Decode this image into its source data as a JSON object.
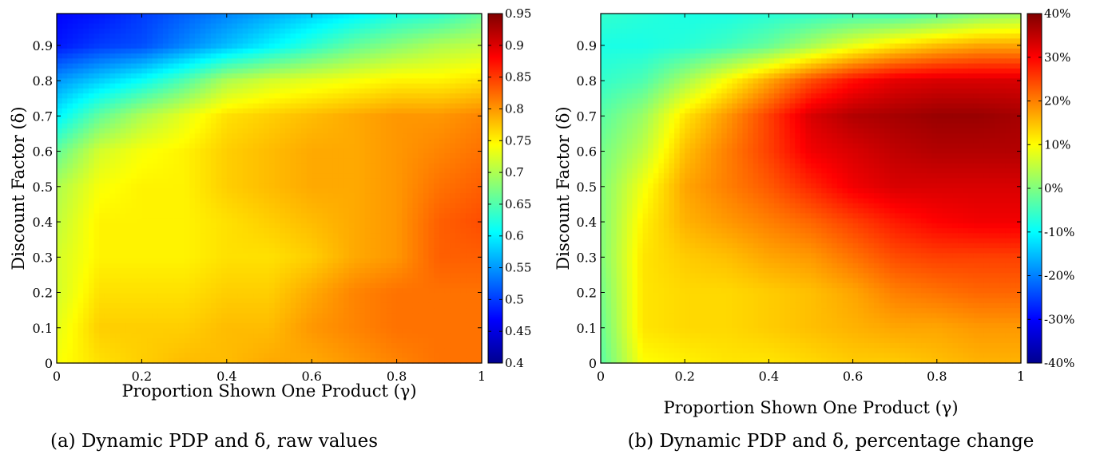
{
  "chart_data": [
    {
      "type": "heatmap",
      "caption": "(a) Dynamic PDP and δ, raw values",
      "xlabel": "Proportion Shown One Product (γ)",
      "ylabel": "Discount Factor (δ)",
      "xlim": [
        0,
        1
      ],
      "ylim": [
        0,
        1
      ],
      "x_ticks": [
        "0",
        "0.2",
        "0.4",
        "0.6",
        "0.8",
        "1"
      ],
      "y_ticks": [
        "0",
        "0.1",
        "0.2",
        "0.3",
        "0.4",
        "0.5",
        "0.6",
        "0.7",
        "0.8",
        "0.9"
      ],
      "colorbar": {
        "min": 0.4,
        "max": 0.95,
        "ticks": [
          "0.4",
          "0.45",
          "0.5",
          "0.55",
          "0.6",
          "0.65",
          "0.7",
          "0.75",
          "0.8",
          "0.85",
          "0.9",
          "0.95"
        ]
      },
      "x": [
        0,
        0.1,
        0.2,
        0.3,
        0.4,
        0.5,
        0.6,
        0.7,
        0.8,
        0.9,
        1.0
      ],
      "y": [
        0,
        0.1,
        0.2,
        0.3,
        0.4,
        0.5,
        0.6,
        0.7,
        0.8,
        0.9,
        0.99
      ],
      "z": [
        [
          0.74,
          0.76,
          0.77,
          0.78,
          0.78,
          0.79,
          0.79,
          0.8,
          0.81,
          0.82,
          0.82
        ],
        [
          0.73,
          0.77,
          0.77,
          0.77,
          0.78,
          0.78,
          0.8,
          0.81,
          0.82,
          0.82,
          0.82
        ],
        [
          0.72,
          0.76,
          0.76,
          0.76,
          0.77,
          0.77,
          0.79,
          0.81,
          0.82,
          0.82,
          0.82
        ],
        [
          0.72,
          0.75,
          0.75,
          0.75,
          0.76,
          0.76,
          0.77,
          0.79,
          0.8,
          0.83,
          0.83
        ],
        [
          0.71,
          0.75,
          0.75,
          0.75,
          0.76,
          0.77,
          0.78,
          0.79,
          0.8,
          0.83,
          0.84
        ],
        [
          0.7,
          0.74,
          0.75,
          0.75,
          0.77,
          0.78,
          0.79,
          0.79,
          0.8,
          0.82,
          0.83
        ],
        [
          0.66,
          0.72,
          0.74,
          0.75,
          0.77,
          0.78,
          0.79,
          0.79,
          0.8,
          0.81,
          0.82
        ],
        [
          0.6,
          0.66,
          0.7,
          0.73,
          0.76,
          0.77,
          0.78,
          0.79,
          0.8,
          0.8,
          0.81
        ],
        [
          0.55,
          0.58,
          0.61,
          0.65,
          0.7,
          0.72,
          0.73,
          0.74,
          0.75,
          0.75,
          0.76
        ],
        [
          0.48,
          0.5,
          0.51,
          0.54,
          0.57,
          0.6,
          0.63,
          0.66,
          0.68,
          0.7,
          0.71
        ],
        [
          0.47,
          0.48,
          0.5,
          0.52,
          0.54,
          0.56,
          0.58,
          0.6,
          0.62,
          0.63,
          0.66
        ]
      ]
    },
    {
      "type": "heatmap",
      "caption": "(b) Dynamic PDP and δ, percentage change",
      "xlabel": "Proportion Shown One Product (γ)",
      "ylabel": "Discount Factor (δ)",
      "xlim": [
        0,
        1
      ],
      "ylim": [
        0,
        1
      ],
      "x_ticks": [
        "0",
        "0.2",
        "0.4",
        "0.6",
        "0.8",
        "1"
      ],
      "y_ticks": [
        "0",
        "0.1",
        "0.2",
        "0.3",
        "0.4",
        "0.5",
        "0.6",
        "0.7",
        "0.8",
        "0.9"
      ],
      "colorbar": {
        "min": -40,
        "max": 40,
        "unit": "%",
        "ticks": [
          "-40%",
          "-30%",
          "-20%",
          "-10%",
          "0%",
          "10%",
          "20%",
          "30%",
          "40%"
        ]
      },
      "x": [
        0,
        0.1,
        0.2,
        0.3,
        0.4,
        0.5,
        0.6,
        0.7,
        0.8,
        0.9,
        1.0
      ],
      "y": [
        0,
        0.1,
        0.2,
        0.3,
        0.4,
        0.5,
        0.6,
        0.7,
        0.8,
        0.9,
        0.99
      ],
      "z": [
        [
          -3,
          10,
          11,
          12,
          12,
          13,
          14,
          14,
          15,
          16,
          16
        ],
        [
          -2,
          12,
          13,
          13,
          14,
          15,
          16,
          17,
          17,
          18,
          18
        ],
        [
          -1,
          12,
          13,
          13,
          14,
          15,
          17,
          20,
          21,
          22,
          22
        ],
        [
          0,
          12,
          14,
          15,
          17,
          18,
          21,
          24,
          25,
          25,
          25
        ],
        [
          0,
          11,
          16,
          18,
          20,
          22,
          25,
          28,
          30,
          31,
          31
        ],
        [
          0,
          9,
          17,
          20,
          23,
          27,
          31,
          33,
          33,
          33,
          33
        ],
        [
          -1,
          5,
          15,
          20,
          25,
          31,
          33,
          35,
          36,
          36,
          36
        ],
        [
          -3,
          2,
          12,
          18,
          25,
          33,
          36,
          37,
          38,
          38,
          37
        ],
        [
          -6,
          -4,
          3,
          10,
          17,
          24,
          29,
          32,
          33,
          33,
          33
        ],
        [
          -8,
          -8,
          -7,
          -5,
          -2,
          3,
          8,
          12,
          15,
          17,
          17
        ],
        [
          -6,
          -7,
          -8,
          -8,
          -7,
          -6,
          -5,
          -5,
          -3,
          0,
          2
        ]
      ]
    }
  ]
}
